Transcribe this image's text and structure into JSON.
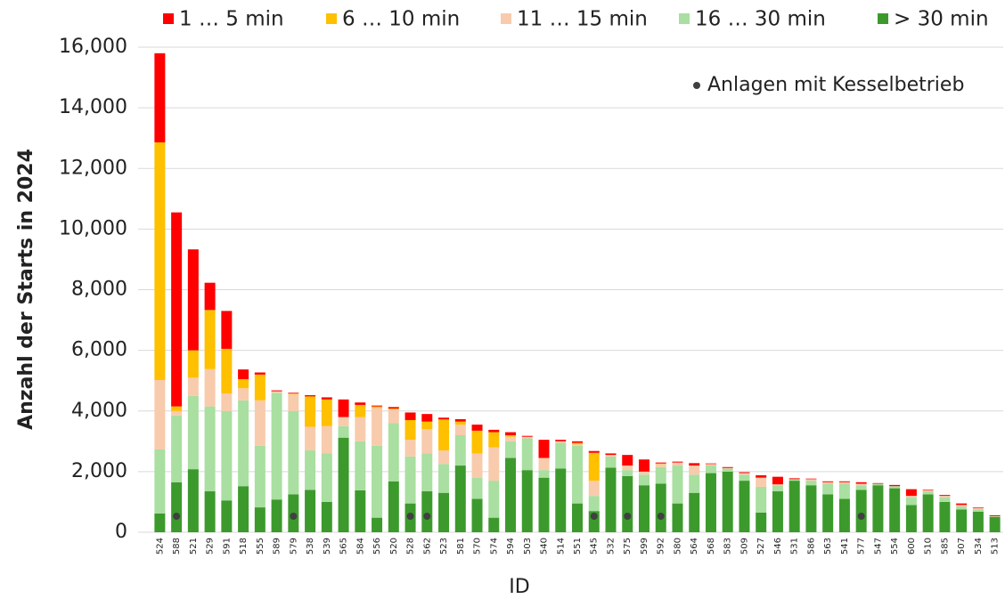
{
  "chart_data": {
    "type": "stacked_bar",
    "y_label": "Anzahl der Starts in 2024",
    "x_label": "ID",
    "categories": [
      "524",
      "588",
      "521",
      "529",
      "591",
      "518",
      "555",
      "589",
      "579",
      "538",
      "539",
      "565",
      "584",
      "556",
      "520",
      "528",
      "562",
      "523",
      "581",
      "570",
      "574",
      "594",
      "503",
      "540",
      "514",
      "551",
      "545",
      "532",
      "575",
      "599",
      "592",
      "580",
      "564",
      "568",
      "583",
      "509",
      "527",
      "546",
      "531",
      "586",
      "563",
      "541",
      "577",
      "547",
      "554",
      "600",
      "510",
      "585",
      "507",
      "534",
      "513"
    ],
    "series": [
      {
        "name": "1 … 5 min",
        "color": "#ff0000",
        "values": [
          2940,
          6400,
          3330,
          900,
          1250,
          320,
          70,
          30,
          20,
          40,
          70,
          580,
          80,
          30,
          50,
          250,
          250,
          60,
          80,
          200,
          80,
          100,
          30,
          600,
          50,
          50,
          60,
          50,
          350,
          400,
          30,
          30,
          80,
          20,
          30,
          30,
          80,
          250,
          30,
          20,
          30,
          30,
          50,
          20,
          40,
          220,
          20,
          30,
          50,
          20,
          30
        ]
      },
      {
        "name": "6 … 10 min",
        "color": "#ffc000",
        "values": [
          7840,
          150,
          900,
          1950,
          1470,
          300,
          850,
          0,
          30,
          1000,
          880,
          0,
          400,
          50,
          30,
          650,
          250,
          1020,
          100,
          750,
          500,
          50,
          0,
          0,
          0,
          50,
          920,
          0,
          0,
          0,
          20,
          0,
          0,
          0,
          0,
          0,
          0,
          0,
          0,
          0,
          0,
          0,
          0,
          0,
          0,
          0,
          0,
          0,
          0,
          0,
          0
        ]
      },
      {
        "name": "11 … 15 min",
        "color": "#f8cbad",
        "values": [
          2290,
          150,
          600,
          1230,
          580,
          400,
          1500,
          50,
          550,
          780,
          900,
          300,
          800,
          1250,
          450,
          550,
          800,
          450,
          350,
          800,
          1100,
          150,
          50,
          400,
          50,
          50,
          500,
          50,
          150,
          100,
          100,
          100,
          300,
          50,
          20,
          50,
          300,
          30,
          0,
          50,
          50,
          50,
          50,
          0,
          0,
          50,
          30,
          50,
          50,
          40,
          0
        ]
      },
      {
        "name": "16 … 30 min",
        "color": "#a9dfa0",
        "values": [
          2110,
          2200,
          2420,
          2800,
          2950,
          2830,
          2030,
          3520,
          2750,
          1300,
          1600,
          380,
          1620,
          2370,
          1920,
          1550,
          1250,
          950,
          1000,
          700,
          1220,
          550,
          1050,
          250,
          850,
          1900,
          500,
          370,
          200,
          350,
          550,
          1250,
          600,
          250,
          100,
          200,
          850,
          200,
          50,
          150,
          350,
          500,
          150,
          50,
          70,
          250,
          100,
          150,
          100,
          80,
          30
        ]
      },
      {
        "name": "> 30 min",
        "color": "#3c9a2c",
        "values": [
          620,
          1650,
          2080,
          1350,
          1050,
          1520,
          820,
          1080,
          1250,
          1400,
          1000,
          3120,
          1380,
          480,
          1680,
          950,
          1350,
          1300,
          2200,
          1100,
          480,
          2450,
          2050,
          1800,
          2100,
          950,
          700,
          2130,
          1850,
          1550,
          1600,
          950,
          1300,
          1950,
          2000,
          1700,
          650,
          1350,
          1700,
          1550,
          1250,
          1100,
          1400,
          1550,
          1450,
          900,
          1250,
          1000,
          750,
          680,
          500
        ]
      }
    ],
    "markers": {
      "name": "Anlagen mit Kesselbetrieb",
      "color": "#404040",
      "flags": [
        false,
        true,
        false,
        false,
        false,
        false,
        false,
        false,
        true,
        false,
        false,
        false,
        false,
        false,
        false,
        true,
        true,
        false,
        false,
        false,
        false,
        false,
        false,
        false,
        false,
        false,
        true,
        false,
        true,
        false,
        true,
        false,
        false,
        false,
        false,
        false,
        false,
        false,
        false,
        false,
        false,
        false,
        true,
        false,
        false,
        false,
        false,
        false,
        false,
        false,
        false
      ]
    },
    "ylim": [
      0,
      16000
    ],
    "yticks": [
      0,
      {
        "value": 2000,
        "label": "2,000"
      },
      {
        "value": 4000,
        "label": "4,000"
      },
      {
        "value": 6000,
        "label": "6,000"
      },
      {
        "value": 8000,
        "label": "8,000"
      },
      {
        "value": 10000,
        "label": "10,000"
      },
      {
        "value": 12000,
        "label": "12,000"
      },
      {
        "value": 14000,
        "label": "14,000"
      },
      {
        "value": 16000,
        "label": "16,000"
      }
    ],
    "grid": true
  }
}
